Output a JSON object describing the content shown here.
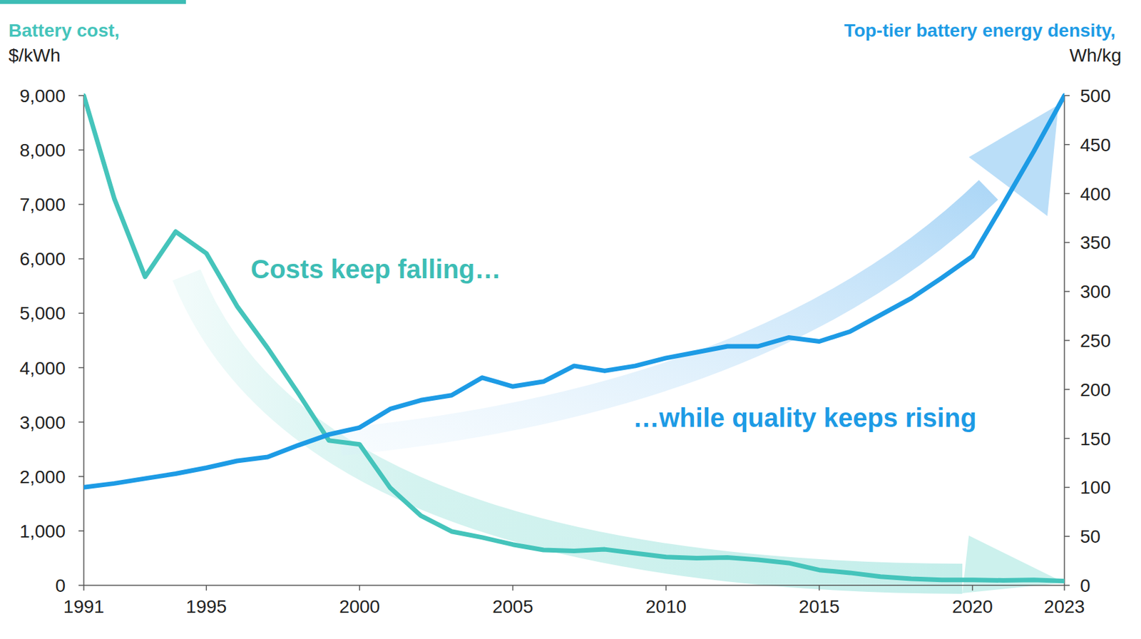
{
  "chart_data": {
    "type": "line",
    "y_label": "Battery cost,",
    "y_unit": "$/kWh",
    "y2_label": "Top-tier battery energy density,",
    "y2_unit": "Wh/kg",
    "annotations": [
      {
        "text": "Costs keep falling…",
        "color": "#3dbdb5"
      },
      {
        "text": "…while quality keeps rising",
        "color": "#1d9be5"
      }
    ],
    "x": [
      1991,
      1992,
      1993,
      1994,
      1995,
      1996,
      1997,
      1998,
      1999,
      2000,
      2001,
      2002,
      2003,
      2004,
      2005,
      2006,
      2007,
      2008,
      2009,
      2010,
      2011,
      2012,
      2013,
      2014,
      2015,
      2016,
      2017,
      2018,
      2019,
      2020,
      2021,
      2022,
      2023
    ],
    "series": [
      {
        "name": "Battery cost",
        "color": "#45c4bb",
        "axis": "y",
        "values": [
          9000,
          7100,
          5670,
          6500,
          6100,
          5130,
          4360,
          3530,
          2660,
          2590,
          1790,
          1280,
          990,
          880,
          750,
          650,
          630,
          660,
          590,
          520,
          500,
          510,
          470,
          410,
          280,
          230,
          160,
          120,
          100,
          100,
          90,
          100,
          80
        ]
      },
      {
        "name": "Top-tier battery energy density",
        "color": "#1d9be5",
        "axis": "y2",
        "values": [
          100,
          104,
          109,
          114,
          120,
          127,
          131,
          143,
          154,
          161,
          180,
          189,
          194,
          212,
          203,
          208,
          224,
          219,
          224,
          232,
          238,
          244,
          244,
          253,
          249,
          259,
          276,
          293,
          314,
          336,
          389,
          443,
          500
        ]
      }
    ],
    "xlim": [
      1991,
      2023
    ],
    "xticks": [
      1991,
      1995,
      2000,
      2005,
      2010,
      2015,
      2020,
      2023
    ],
    "ylim": [
      0,
      9000
    ],
    "yticks": [
      0,
      {
        "value": 1000,
        "label": "1,000"
      },
      {
        "value": 2000,
        "label": "2,000"
      },
      {
        "value": 3000,
        "label": "3,000"
      },
      {
        "value": 4000,
        "label": "4,000"
      },
      {
        "value": 5000,
        "label": "5,000"
      },
      {
        "value": 6000,
        "label": "6,000"
      },
      {
        "value": 7000,
        "label": "7,000"
      },
      {
        "value": 8000,
        "label": "8,000"
      },
      {
        "value": 9000,
        "label": "9,000"
      }
    ],
    "y2lim": [
      0,
      500
    ],
    "y2ticks": [
      0,
      50,
      100,
      150,
      200,
      250,
      300,
      350,
      400,
      450,
      500
    ],
    "grid": false
  }
}
